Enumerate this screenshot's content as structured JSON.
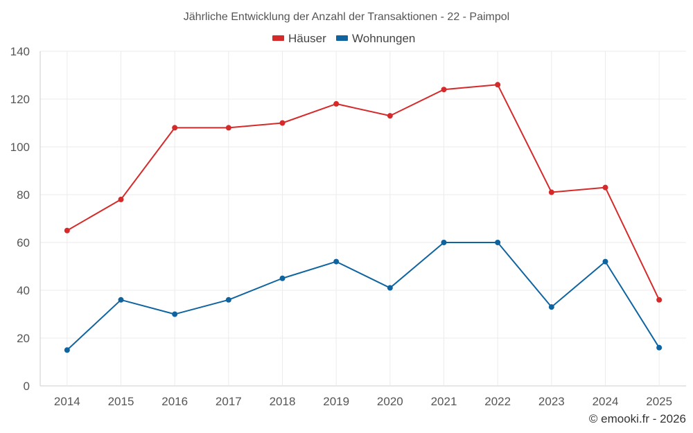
{
  "chart_data": {
    "type": "line",
    "title": "Jährliche Entwicklung der Anzahl der Transaktionen - 22 - Paimpol",
    "categories": [
      "2014",
      "2015",
      "2016",
      "2017",
      "2018",
      "2019",
      "2020",
      "2021",
      "2022",
      "2023",
      "2024",
      "2025"
    ],
    "series": [
      {
        "name": "Häuser",
        "color": "#d62a2a",
        "values": [
          65,
          78,
          108,
          108,
          110,
          118,
          113,
          124,
          126,
          81,
          83,
          36
        ]
      },
      {
        "name": "Wohnungen",
        "color": "#0f64a0",
        "values": [
          15,
          36,
          30,
          36,
          45,
          52,
          41,
          60,
          60,
          33,
          52,
          16
        ]
      }
    ],
    "ylim": [
      0,
      140
    ],
    "yticks": [
      0,
      20,
      40,
      60,
      80,
      100,
      120,
      140
    ],
    "xlabel": "",
    "ylabel": "",
    "grid": true,
    "legend": "top-center"
  },
  "credit": "© emooki.fr - 2026"
}
